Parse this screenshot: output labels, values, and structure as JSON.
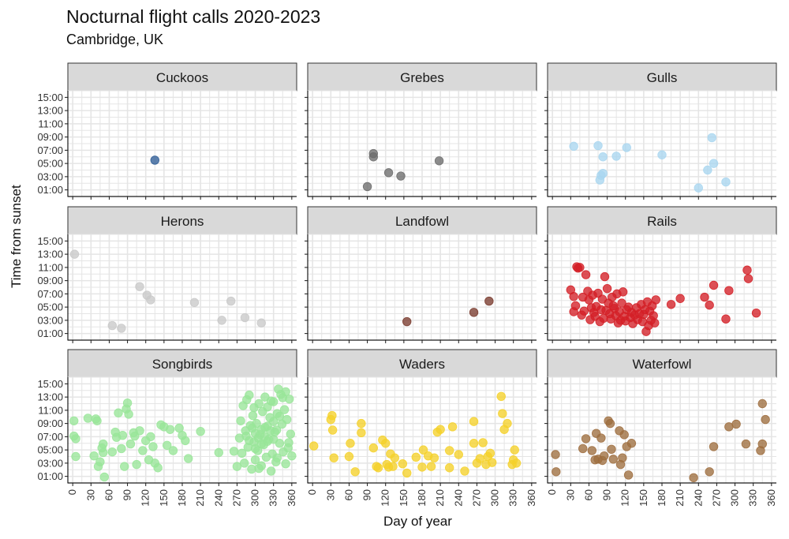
{
  "chart_data": {
    "type": "scatter",
    "title": "Nocturnal flight calls 2020-2023",
    "subtitle": "Cambridge, UK",
    "xlabel": "Day of year",
    "ylabel": "Time from sunset",
    "xlim": [
      -8,
      368
    ],
    "ylim": [
      0,
      16
    ],
    "x_ticks": [
      0,
      30,
      60,
      90,
      120,
      150,
      180,
      210,
      240,
      270,
      300,
      330,
      360
    ],
    "y_ticks": [
      1,
      3,
      5,
      7,
      9,
      11,
      13,
      15
    ],
    "y_tick_labels": [
      "01:00",
      "03:00",
      "05:00",
      "07:00",
      "09:00",
      "11:00",
      "13:00",
      "15:00"
    ],
    "panels": [
      {
        "name": "Cuckoos",
        "color": "#2e5c96",
        "points": [
          [
            135,
            5.5
          ]
        ]
      },
      {
        "name": "Grebes",
        "color": "#6b6b6b",
        "points": [
          [
            90,
            1.5
          ],
          [
            100,
            6.5
          ],
          [
            100,
            6.0
          ],
          [
            125,
            3.6
          ],
          [
            145,
            3.1
          ],
          [
            208,
            5.4
          ]
        ]
      },
      {
        "name": "Gulls",
        "color": "#a9d6ef",
        "points": [
          [
            35,
            7.6
          ],
          [
            75,
            7.7
          ],
          [
            78,
            2.5
          ],
          [
            80,
            3.2
          ],
          [
            83,
            3.5
          ],
          [
            83,
            6.0
          ],
          [
            105,
            6.1
          ],
          [
            122,
            7.4
          ],
          [
            180,
            6.3
          ],
          [
            240,
            1.3
          ],
          [
            255,
            4.0
          ],
          [
            262,
            8.9
          ],
          [
            265,
            5.0
          ],
          [
            285,
            2.2
          ]
        ]
      },
      {
        "name": "Herons",
        "color": "#c9c9c9",
        "points": [
          [
            3,
            13.0
          ],
          [
            65,
            2.2
          ],
          [
            80,
            1.8
          ],
          [
            110,
            8.1
          ],
          [
            122,
            6.8
          ],
          [
            128,
            6.1
          ],
          [
            200,
            5.7
          ],
          [
            245,
            3.0
          ],
          [
            260,
            5.9
          ],
          [
            283,
            3.4
          ],
          [
            310,
            2.6
          ]
        ]
      },
      {
        "name": "Landfowl",
        "color": "#7a3b2e",
        "points": [
          [
            155,
            2.8
          ],
          [
            265,
            4.2
          ],
          [
            290,
            5.9
          ]
        ]
      },
      {
        "name": "Rails",
        "color": "#d41f26",
        "points": [
          [
            30,
            7.6
          ],
          [
            35,
            4.3
          ],
          [
            35,
            6.6
          ],
          [
            38,
            5.2
          ],
          [
            40,
            11.1
          ],
          [
            42,
            10.9
          ],
          [
            45,
            11.0
          ],
          [
            48,
            3.8
          ],
          [
            50,
            6.5
          ],
          [
            52,
            4.4
          ],
          [
            55,
            9.9
          ],
          [
            58,
            7.4
          ],
          [
            60,
            6.1
          ],
          [
            62,
            3.1
          ],
          [
            64,
            4.9
          ],
          [
            66,
            6.8
          ],
          [
            68,
            4.2
          ],
          [
            70,
            3.6
          ],
          [
            72,
            5.1
          ],
          [
            75,
            7.1
          ],
          [
            78,
            2.8
          ],
          [
            80,
            4.6
          ],
          [
            82,
            6.2
          ],
          [
            84,
            3.3
          ],
          [
            86,
            9.6
          ],
          [
            88,
            4.5
          ],
          [
            90,
            7.8
          ],
          [
            92,
            5.6
          ],
          [
            94,
            4.0
          ],
          [
            96,
            3.2
          ],
          [
            98,
            6.5
          ],
          [
            100,
            5.2
          ],
          [
            102,
            4.8
          ],
          [
            104,
            3.7
          ],
          [
            106,
            7.0
          ],
          [
            108,
            2.6
          ],
          [
            110,
            4.3
          ],
          [
            112,
            3.0
          ],
          [
            114,
            5.6
          ],
          [
            116,
            7.3
          ],
          [
            118,
            3.6
          ],
          [
            120,
            2.9
          ],
          [
            122,
            4.6
          ],
          [
            125,
            5.0
          ],
          [
            128,
            3.4
          ],
          [
            130,
            4.2
          ],
          [
            132,
            2.5
          ],
          [
            135,
            3.8
          ],
          [
            138,
            4.9
          ],
          [
            140,
            3.1
          ],
          [
            143,
            4.0
          ],
          [
            146,
            5.4
          ],
          [
            148,
            2.8
          ],
          [
            150,
            3.9
          ],
          [
            152,
            4.6
          ],
          [
            154,
            1.3
          ],
          [
            156,
            5.8
          ],
          [
            158,
            2.2
          ],
          [
            160,
            4.4
          ],
          [
            162,
            3.0
          ],
          [
            164,
            5.2
          ],
          [
            166,
            3.7
          ],
          [
            168,
            2.6
          ],
          [
            170,
            6.1
          ],
          [
            195,
            5.4
          ],
          [
            210,
            6.3
          ],
          [
            250,
            6.5
          ],
          [
            258,
            5.3
          ],
          [
            265,
            8.3
          ],
          [
            285,
            3.2
          ],
          [
            290,
            7.5
          ],
          [
            320,
            10.6
          ],
          [
            322,
            9.3
          ],
          [
            335,
            4.1
          ]
        ]
      },
      {
        "name": "Songbirds",
        "color": "#99e699",
        "points": [
          [
            2,
            9.4
          ],
          [
            2,
            7.1
          ],
          [
            5,
            4.0
          ],
          [
            5,
            6.7
          ],
          [
            25,
            9.8
          ],
          [
            35,
            4.1
          ],
          [
            38,
            9.7
          ],
          [
            40,
            9.4
          ],
          [
            42,
            2.5
          ],
          [
            45,
            3.2
          ],
          [
            48,
            5.3
          ],
          [
            50,
            4.6
          ],
          [
            50,
            5.9
          ],
          [
            52,
            0.9
          ],
          [
            65,
            4.7
          ],
          [
            70,
            7.7
          ],
          [
            72,
            6.9
          ],
          [
            75,
            10.6
          ],
          [
            80,
            5.2
          ],
          [
            82,
            7.2
          ],
          [
            85,
            2.5
          ],
          [
            88,
            11.2
          ],
          [
            90,
            12.1
          ],
          [
            92,
            10.4
          ],
          [
            95,
            5.9
          ],
          [
            100,
            7.6
          ],
          [
            102,
            7.1
          ],
          [
            105,
            2.8
          ],
          [
            110,
            7.9
          ],
          [
            115,
            4.9
          ],
          [
            120,
            6.4
          ],
          [
            125,
            3.5
          ],
          [
            128,
            7.0
          ],
          [
            132,
            5.5
          ],
          [
            135,
            3.0
          ],
          [
            140,
            2.3
          ],
          [
            145,
            8.8
          ],
          [
            150,
            8.5
          ],
          [
            155,
            5.7
          ],
          [
            160,
            8.1
          ],
          [
            165,
            4.9
          ],
          [
            175,
            8.3
          ],
          [
            180,
            7.2
          ],
          [
            185,
            6.4
          ],
          [
            190,
            3.7
          ],
          [
            210,
            7.8
          ],
          [
            240,
            4.6
          ],
          [
            265,
            4.8
          ],
          [
            270,
            2.5
          ],
          [
            274,
            6.8
          ],
          [
            276,
            9.4
          ],
          [
            278,
            4.5
          ],
          [
            280,
            11.7
          ],
          [
            282,
            3.0
          ],
          [
            284,
            7.9
          ],
          [
            286,
            12.6
          ],
          [
            288,
            5.4
          ],
          [
            290,
            13.3
          ],
          [
            292,
            8.7
          ],
          [
            294,
            2.1
          ],
          [
            296,
            10.2
          ],
          [
            298,
            6.2
          ],
          [
            300,
            3.5
          ],
          [
            302,
            9.0
          ],
          [
            304,
            4.9
          ],
          [
            306,
            12.0
          ],
          [
            308,
            7.3
          ],
          [
            310,
            2.6
          ],
          [
            312,
            10.8
          ],
          [
            314,
            5.8
          ],
          [
            316,
            8.4
          ],
          [
            318,
            3.9
          ],
          [
            320,
            11.5
          ],
          [
            322,
            6.6
          ],
          [
            324,
            9.9
          ],
          [
            326,
            1.8
          ],
          [
            328,
            4.4
          ],
          [
            330,
            12.3
          ],
          [
            332,
            7.7
          ],
          [
            334,
            3.2
          ],
          [
            336,
            10.5
          ],
          [
            338,
            14.2
          ],
          [
            340,
            6.0
          ],
          [
            342,
            13.4
          ],
          [
            344,
            8.9
          ],
          [
            346,
            4.7
          ],
          [
            348,
            11.1
          ],
          [
            350,
            2.9
          ],
          [
            352,
            9.6
          ],
          [
            354,
            5.3
          ],
          [
            356,
            12.7
          ],
          [
            358,
            7.4
          ],
          [
            360,
            4.1
          ],
          [
            300,
            7.5
          ],
          [
            305,
            6.8
          ],
          [
            310,
            8.1
          ],
          [
            315,
            7.0
          ],
          [
            320,
            6.3
          ],
          [
            325,
            7.9
          ],
          [
            330,
            6.6
          ],
          [
            335,
            8.0
          ],
          [
            290,
            6.4
          ],
          [
            295,
            8.3
          ],
          [
            285,
            7.1
          ],
          [
            300,
            5.2
          ],
          [
            310,
            5.9
          ],
          [
            320,
            8.6
          ],
          [
            330,
            9.3
          ],
          [
            340,
            10.1
          ],
          [
            345,
            12.9
          ],
          [
            350,
            13.8
          ],
          [
            355,
            6.1
          ],
          [
            298,
            11.4
          ],
          [
            306,
            2.2
          ],
          [
            316,
            13.0
          ],
          [
            326,
            12.4
          ],
          [
            336,
            3.8
          ]
        ]
      },
      {
        "name": "Waders",
        "color": "#f5d12a",
        "points": [
          [
            2,
            5.6
          ],
          [
            30,
            9.6
          ],
          [
            32,
            10.2
          ],
          [
            33,
            8.0
          ],
          [
            35,
            3.8
          ],
          [
            60,
            4.0
          ],
          [
            62,
            6.0
          ],
          [
            70,
            1.7
          ],
          [
            80,
            9.0
          ],
          [
            80,
            7.6
          ],
          [
            100,
            5.3
          ],
          [
            105,
            2.5
          ],
          [
            108,
            2.3
          ],
          [
            115,
            6.5
          ],
          [
            120,
            6.0
          ],
          [
            122,
            2.8
          ],
          [
            125,
            2.4
          ],
          [
            128,
            4.4
          ],
          [
            132,
            2.5
          ],
          [
            135,
            3.8
          ],
          [
            148,
            2.9
          ],
          [
            155,
            1.5
          ],
          [
            170,
            3.9
          ],
          [
            180,
            2.4
          ],
          [
            182,
            5.0
          ],
          [
            190,
            4.1
          ],
          [
            195,
            2.5
          ],
          [
            200,
            3.8
          ],
          [
            205,
            7.7
          ],
          [
            210,
            8.1
          ],
          [
            225,
            4.9
          ],
          [
            225,
            2.3
          ],
          [
            230,
            8.5
          ],
          [
            240,
            4.3
          ],
          [
            250,
            1.8
          ],
          [
            265,
            9.3
          ],
          [
            265,
            6.0
          ],
          [
            270,
            3.0
          ],
          [
            275,
            3.7
          ],
          [
            280,
            6.1
          ],
          [
            285,
            2.8
          ],
          [
            288,
            4.0
          ],
          [
            292,
            4.5
          ],
          [
            295,
            3.1
          ],
          [
            310,
            13.1
          ],
          [
            312,
            10.5
          ],
          [
            315,
            8.1
          ],
          [
            320,
            9.0
          ],
          [
            328,
            2.8
          ],
          [
            330,
            3.5
          ],
          [
            332,
            5.0
          ],
          [
            335,
            3.0
          ]
        ]
      },
      {
        "name": "Waterfowl",
        "color": "#9e6e3f",
        "points": [
          [
            5,
            4.3
          ],
          [
            6,
            1.7
          ],
          [
            50,
            5.2
          ],
          [
            55,
            6.7
          ],
          [
            65,
            4.9
          ],
          [
            70,
            3.5
          ],
          [
            72,
            7.5
          ],
          [
            75,
            3.6
          ],
          [
            80,
            6.8
          ],
          [
            82,
            3.4
          ],
          [
            85,
            4.1
          ],
          [
            92,
            9.4
          ],
          [
            95,
            9.0
          ],
          [
            97,
            5.1
          ],
          [
            100,
            3.6
          ],
          [
            110,
            7.9
          ],
          [
            112,
            2.8
          ],
          [
            115,
            3.8
          ],
          [
            118,
            7.3
          ],
          [
            122,
            5.5
          ],
          [
            125,
            1.2
          ],
          [
            130,
            6.0
          ],
          [
            232,
            0.8
          ],
          [
            258,
            1.7
          ],
          [
            265,
            5.5
          ],
          [
            290,
            8.5
          ],
          [
            302,
            8.9
          ],
          [
            318,
            5.9
          ],
          [
            342,
            4.9
          ],
          [
            345,
            5.9
          ],
          [
            345,
            12.0
          ],
          [
            350,
            9.6
          ]
        ]
      }
    ]
  }
}
